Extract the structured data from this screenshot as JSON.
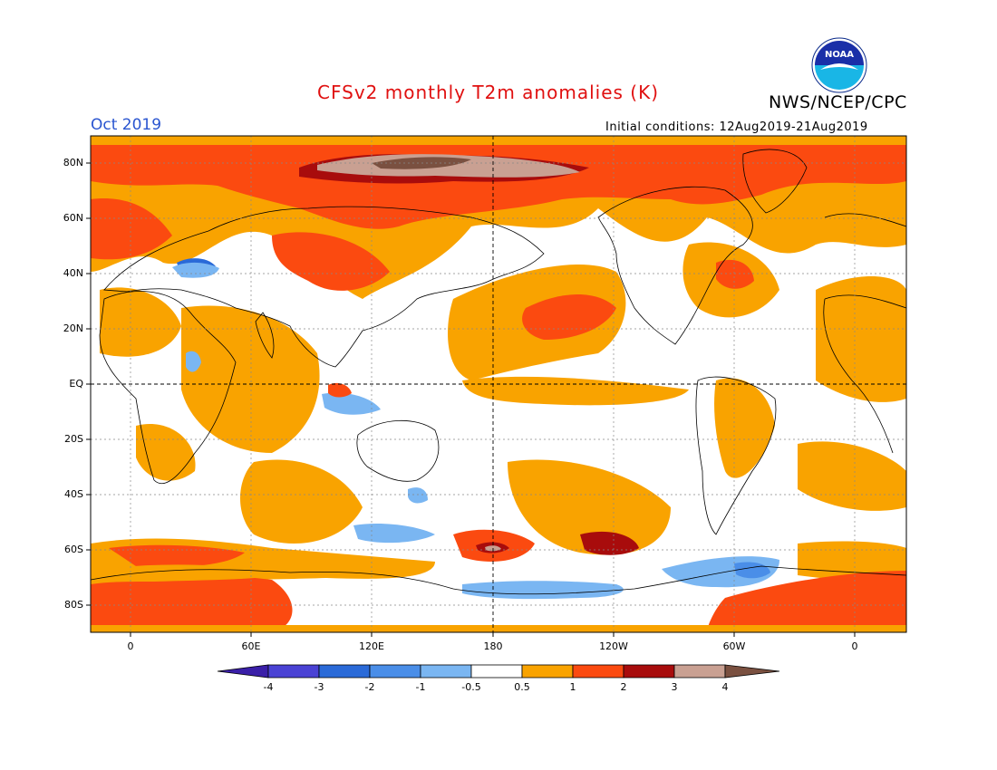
{
  "title": "CFSv2 monthly T2m anomalies (K)",
  "agency": "NWS/NCEP/CPC",
  "logo_text": "NOAA",
  "period": "Oct 2019",
  "initial_conditions": "Initial conditions: 12Aug2019-21Aug2019",
  "map": {
    "projection": "cylindrical equidistant",
    "lon_range": [
      -20,
      380
    ],
    "lat_range": [
      -90,
      90
    ],
    "grid_lines": "dotted",
    "lat_labels": [
      "80N",
      "60N",
      "40N",
      "20N",
      "EQ",
      "20S",
      "40S",
      "60S",
      "80S"
    ],
    "lon_labels": [
      "0",
      "60E",
      "120E",
      "180",
      "120W",
      "60W",
      "0"
    ],
    "land_color": "#ffffff",
    "ocean_color": "#ffffff"
  },
  "colorbar": {
    "labels": [
      "-4",
      "-3",
      "-2",
      "-1",
      "-0.5",
      "0.5",
      "1",
      "2",
      "3",
      "4"
    ],
    "colors": [
      "#3a1fa8",
      "#4a42d4",
      "#2a6ad8",
      "#4a8ee8",
      "#7ab6f2",
      "#ffffff",
      "#f9a300",
      "#fb4a10",
      "#a80c0c",
      "#c9a092",
      "#7a5040"
    ],
    "units": "K"
  }
}
